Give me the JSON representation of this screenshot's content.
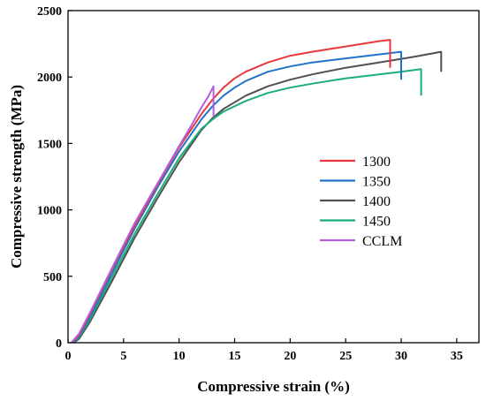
{
  "chart_data": {
    "type": "line",
    "title": "",
    "xlabel": "Compressive strain (%)",
    "ylabel": "Compressive strength (MPa)",
    "xlim": [
      0,
      37
    ],
    "ylim": [
      0,
      2500
    ],
    "xticks": [
      0,
      5,
      10,
      15,
      20,
      25,
      30,
      35
    ],
    "yticks": [
      0,
      500,
      1000,
      1500,
      2000,
      2500
    ],
    "grid": false,
    "legend_position": "right",
    "series": [
      {
        "name": "1300",
        "color": "#e8383b",
        "x": [
          0.3,
          1,
          2,
          4,
          6,
          8,
          10,
          12,
          13,
          14,
          15,
          16,
          18,
          20,
          22,
          25,
          28,
          29.0
        ],
        "y": [
          0,
          60,
          220,
          560,
          880,
          1180,
          1470,
          1720,
          1830,
          1920,
          1990,
          2040,
          2110,
          2160,
          2190,
          2230,
          2270,
          2280
        ],
        "drop_to": 2070
      },
      {
        "name": "1350",
        "color": "#2272c8",
        "x": [
          0.3,
          1,
          2,
          4,
          6,
          8,
          10,
          12,
          13,
          14,
          15,
          16,
          18,
          20,
          22,
          25,
          28,
          30.0
        ],
        "y": [
          0,
          50,
          200,
          530,
          860,
          1160,
          1440,
          1680,
          1780,
          1860,
          1920,
          1970,
          2040,
          2080,
          2110,
          2140,
          2170,
          2190
        ],
        "drop_to": 1980
      },
      {
        "name": "1400",
        "color": "#505050",
        "x": [
          0.5,
          1,
          2,
          4,
          6,
          8,
          10,
          12,
          13,
          14,
          16,
          18,
          20,
          22,
          25,
          28,
          31,
          33.6
        ],
        "y": [
          0,
          30,
          160,
          470,
          790,
          1080,
          1360,
          1600,
          1690,
          1760,
          1860,
          1930,
          1980,
          2020,
          2070,
          2110,
          2150,
          2190
        ],
        "drop_to": 2040
      },
      {
        "name": "1450",
        "color": "#1aae7a",
        "x": [
          0.4,
          1,
          2,
          4,
          6,
          8,
          10,
          12,
          13,
          14,
          16,
          18,
          20,
          22,
          25,
          28,
          30,
          31.8
        ],
        "y": [
          0,
          40,
          180,
          500,
          820,
          1110,
          1390,
          1610,
          1680,
          1740,
          1820,
          1880,
          1920,
          1950,
          1990,
          2020,
          2040,
          2060
        ],
        "drop_to": 1860
      },
      {
        "name": "CCLM",
        "color": "#b35fe0",
        "x": [
          0.3,
          1,
          2,
          4,
          6,
          8,
          10,
          11,
          12,
          12.6,
          13.1
        ],
        "y": [
          0,
          70,
          230,
          570,
          900,
          1190,
          1480,
          1620,
          1770,
          1850,
          1930
        ],
        "drop_to": 1700
      }
    ]
  }
}
